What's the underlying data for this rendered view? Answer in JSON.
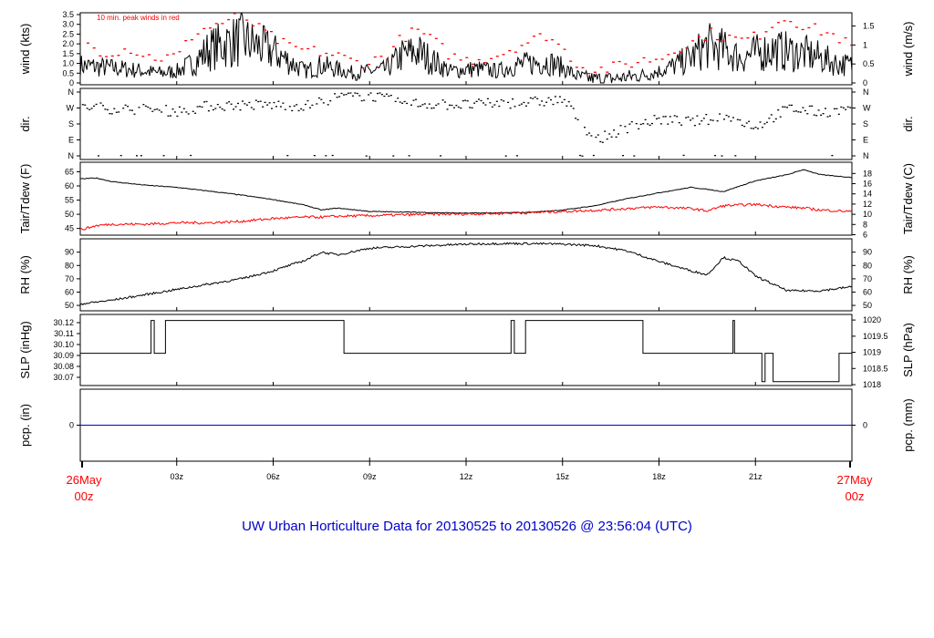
{
  "title": "UW Urban Horticulture Data for 20130525  to  20130526 @ 23:56:04  (UTC)",
  "colors": {
    "title": "#0000cc",
    "peak": "#ff0000",
    "tdew": "#ff0000",
    "series": "#000000",
    "pcp": "#0000cc",
    "date_labels": "#ff0000"
  },
  "x_axis": {
    "ticks": [
      "03z",
      "06z",
      "09z",
      "12z",
      "15z",
      "18z",
      "21z"
    ],
    "tick_hours": [
      3,
      6,
      9,
      12,
      15,
      18,
      21
    ],
    "start_label": [
      "26May",
      "00z"
    ],
    "end_label": [
      "27May",
      "00z"
    ]
  },
  "chart_data": [
    {
      "type": "line",
      "ylabel": "wind (kts)",
      "ylabel_right": "wind (m/s)",
      "annotation": "10 min. peak winds in red",
      "ylim": [
        0,
        3.5
      ],
      "left_ticks": [
        "0",
        "0.5",
        "1.0",
        "1.5",
        "2.0",
        "2.5",
        "3.0",
        "3.5"
      ],
      "left_tick_values": [
        0,
        0.5,
        1.0,
        1.5,
        2.0,
        2.5,
        3.0,
        3.5
      ],
      "right_ticks": [
        "0",
        "0.5",
        "1",
        "1.5"
      ],
      "right_tick_values": [
        0,
        0.972,
        1.944,
        2.916
      ],
      "x_hours": [
        0,
        0.75,
        1.5,
        2,
        2.5,
        3,
        3.5,
        4,
        4.5,
        5,
        5.5,
        6,
        6.5,
        7,
        7.5,
        8,
        8.5,
        9,
        9.5,
        10,
        10.5,
        11,
        11.5,
        12,
        12.5,
        13,
        13.5,
        14,
        14.5,
        15,
        15.5,
        16,
        16.5,
        17,
        17.5,
        18,
        18.5,
        19,
        19.5,
        20,
        20.5,
        21,
        21.5,
        22,
        22.5,
        23,
        23.5,
        24
      ],
      "series": [
        {
          "name": "wind",
          "values": [
            0.9,
            0.8,
            0.7,
            0.6,
            0.5,
            0.6,
            1.0,
            1.7,
            2.0,
            2.2,
            1.9,
            1.6,
            1.1,
            0.6,
            0.9,
            0.7,
            0.5,
            0.6,
            0.7,
            1.4,
            1.6,
            1.1,
            0.6,
            0.7,
            0.7,
            0.6,
            0.9,
            1.0,
            1.1,
            0.8,
            0.3,
            0.2,
            0.2,
            0.3,
            0.4,
            0.6,
            0.9,
            1.3,
            1.9,
            1.7,
            1.3,
            1.5,
            1.7,
            1.6,
            1.5,
            1.3,
            1.0,
            0.9
          ]
        },
        {
          "name": "10 min. peak",
          "values": [
            2.1,
            1.6,
            1.8,
            1.4,
            1.3,
            1.4,
            2.6,
            2.9,
            3.2,
            3.5,
            2.8,
            2.3,
            1.8,
            1.7,
            1.6,
            1.4,
            1.1,
            1.1,
            1.5,
            2.4,
            2.7,
            2.1,
            1.4,
            1.2,
            1.3,
            1.5,
            1.9,
            2.2,
            2.5,
            1.7,
            0.9,
            0.7,
            0.8,
            1.0,
            1.2,
            1.3,
            1.8,
            2.1,
            2.6,
            2.4,
            2.2,
            2.4,
            3.1,
            3.4,
            2.9,
            2.7,
            2.4,
            1.8
          ]
        }
      ]
    },
    {
      "type": "scatter",
      "ylabel": "dir.",
      "ylabel_right": "dir.",
      "ylim": [
        0,
        360
      ],
      "left_ticks": [
        "N",
        "E",
        "S",
        "W",
        "N"
      ],
      "left_tick_values": [
        0,
        90,
        180,
        270,
        360
      ],
      "right_ticks": [
        "N",
        "E",
        "S",
        "W",
        "N"
      ],
      "right_tick_values": [
        0,
        90,
        180,
        270,
        360
      ],
      "x_hours": [
        0,
        1,
        2,
        3,
        4,
        5,
        6,
        7,
        8,
        9,
        10,
        11,
        12,
        13,
        14,
        15,
        16,
        17,
        18,
        19,
        20,
        21,
        22,
        23,
        24
      ],
      "series": [
        {
          "name": "direction",
          "values": [
            280,
            270,
            265,
            255,
            285,
            290,
            290,
            285,
            335,
            345,
            300,
            295,
            290,
            300,
            305,
            320,
            90,
            165,
            210,
            195,
            225,
            170,
            270,
            250,
            265
          ]
        }
      ]
    },
    {
      "type": "line",
      "ylabel": "Tair/Tdew (F)",
      "ylabel_right": "Tair/Tdew (C)",
      "ylim": [
        43.6,
        67.4
      ],
      "left_ticks": [
        "45",
        "50",
        "55",
        "60",
        "65"
      ],
      "left_tick_values": [
        45,
        50,
        55,
        60,
        65
      ],
      "right_ticks": [
        "6",
        "8",
        "10",
        "12",
        "14",
        "16",
        "18"
      ],
      "right_tick_values": [
        42.8,
        46.4,
        50,
        53.6,
        57.2,
        60.8,
        64.4
      ],
      "x_hours": [
        0,
        0.5,
        1,
        2,
        3,
        4,
        5,
        6,
        7,
        7.5,
        8,
        9,
        10,
        11,
        12,
        13,
        14,
        15,
        16,
        17,
        18,
        19,
        19.5,
        20,
        21,
        22,
        22.5,
        23,
        24
      ],
      "series": [
        {
          "name": "Tair",
          "values": [
            62.5,
            62.8,
            61.5,
            60.3,
            59.5,
            58.2,
            56.8,
            55.2,
            53.2,
            51.5,
            52.2,
            51.0,
            50.8,
            50.6,
            50.4,
            50.5,
            50.7,
            51.5,
            53.0,
            55.5,
            57.6,
            59.5,
            58.8,
            58.0,
            61.8,
            64.0,
            65.8,
            64.0,
            63.0
          ]
        },
        {
          "name": "Tdew",
          "values": [
            44.5,
            46.0,
            46.5,
            46.5,
            47.0,
            47.0,
            47.5,
            48.5,
            49.0,
            49.0,
            49.3,
            49.5,
            49.8,
            50.0,
            50.1,
            50.3,
            50.6,
            51.0,
            51.4,
            52.0,
            52.6,
            52.0,
            51.2,
            53.0,
            53.5,
            52.5,
            52.2,
            51.5,
            51.0
          ]
        }
      ]
    },
    {
      "type": "line",
      "ylabel": "RH (%)",
      "ylabel_right": "RH (%)",
      "ylim": [
        48,
        98
      ],
      "left_ticks": [
        "50",
        "60",
        "70",
        "80",
        "90"
      ],
      "left_tick_values": [
        50,
        60,
        70,
        80,
        90
      ],
      "right_ticks": [
        "50",
        "60",
        "70",
        "80",
        "90"
      ],
      "right_tick_values": [
        50,
        60,
        70,
        80,
        90
      ],
      "x_hours": [
        0,
        1,
        2,
        3,
        4,
        5,
        6,
        7,
        7.5,
        8,
        9,
        10,
        11,
        12,
        13,
        14,
        15,
        16,
        17,
        18,
        19,
        19.5,
        20,
        20.5,
        21,
        22,
        23,
        24
      ],
      "series": [
        {
          "name": "RH",
          "values": [
            51,
            54,
            58,
            62,
            66,
            70,
            76,
            84,
            90,
            88,
            93,
            94,
            95,
            96,
            96.5,
            96.5,
            96,
            95,
            91,
            83,
            76,
            73,
            86,
            83,
            72,
            61,
            61,
            64
          ]
        }
      ]
    },
    {
      "type": "line",
      "ylabel": "SLP (inHg)",
      "ylabel_right": "SLP (hPa)",
      "ylim": [
        30.065,
        30.125
      ],
      "left_ticks": [
        "30.07",
        "30.08",
        "30.09",
        "30.10",
        "30.11",
        "30.12"
      ],
      "left_tick_values": [
        30.07,
        30.08,
        30.09,
        30.1,
        30.11,
        30.12
      ],
      "right_ticks": [
        "1018",
        "1018.5",
        "1019",
        "1019.5",
        "1020"
      ],
      "right_tick_values": [
        30.0633,
        30.0781,
        30.0929,
        30.1076,
        30.1224
      ],
      "steps": [
        [
          0,
          30.092
        ],
        [
          2.2,
          30.092
        ],
        [
          2.2,
          30.122
        ],
        [
          2.3,
          30.122
        ],
        [
          2.3,
          30.092
        ],
        [
          2.65,
          30.092
        ],
        [
          2.65,
          30.122
        ],
        [
          8.2,
          30.122
        ],
        [
          8.2,
          30.092
        ],
        [
          13.4,
          30.092
        ],
        [
          13.4,
          30.122
        ],
        [
          13.5,
          30.122
        ],
        [
          13.5,
          30.092
        ],
        [
          13.85,
          30.092
        ],
        [
          13.85,
          30.122
        ],
        [
          17.5,
          30.122
        ],
        [
          17.5,
          30.092
        ],
        [
          20.3,
          30.092
        ],
        [
          20.3,
          30.122
        ],
        [
          20.35,
          30.122
        ],
        [
          20.35,
          30.092
        ],
        [
          21.2,
          30.092
        ],
        [
          21.2,
          30.066
        ],
        [
          21.3,
          30.066
        ],
        [
          21.3,
          30.092
        ],
        [
          21.55,
          30.092
        ],
        [
          21.55,
          30.066
        ],
        [
          23.6,
          30.066
        ],
        [
          23.6,
          30.092
        ],
        [
          24,
          30.092
        ]
      ]
    },
    {
      "type": "line",
      "ylabel": "pcp. (in)",
      "ylabel_right": "pcp. (mm)",
      "left_ticks": [
        "0"
      ],
      "right_ticks": [
        "0"
      ],
      "x_hours": [
        0,
        24
      ],
      "series": [
        {
          "name": "precipitation",
          "values": [
            0,
            0
          ]
        }
      ]
    }
  ]
}
